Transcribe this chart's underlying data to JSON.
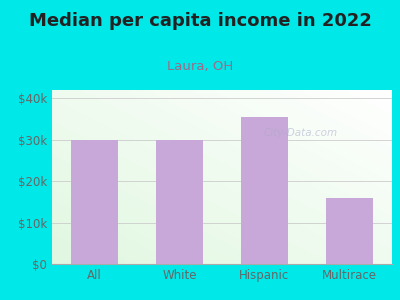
{
  "title": "Median per capita income in 2022",
  "subtitle": "Laura, OH",
  "categories": [
    "All",
    "White",
    "Hispanic",
    "Multirace"
  ],
  "values": [
    30000,
    30000,
    35500,
    16000
  ],
  "bar_color": "#c8a8d8",
  "outer_bg": "#00e8e8",
  "title_color": "#222222",
  "subtitle_color": "#9b6b8a",
  "ytick_labels": [
    "$0",
    "$10k",
    "$20k",
    "$30k",
    "$40k"
  ],
  "ytick_values": [
    0,
    10000,
    20000,
    30000,
    40000
  ],
  "ylim": [
    0,
    42000
  ],
  "watermark": "City-Data.com",
  "title_fontsize": 13,
  "subtitle_fontsize": 9.5,
  "tick_fontsize": 8.5,
  "tick_color": "#666666"
}
